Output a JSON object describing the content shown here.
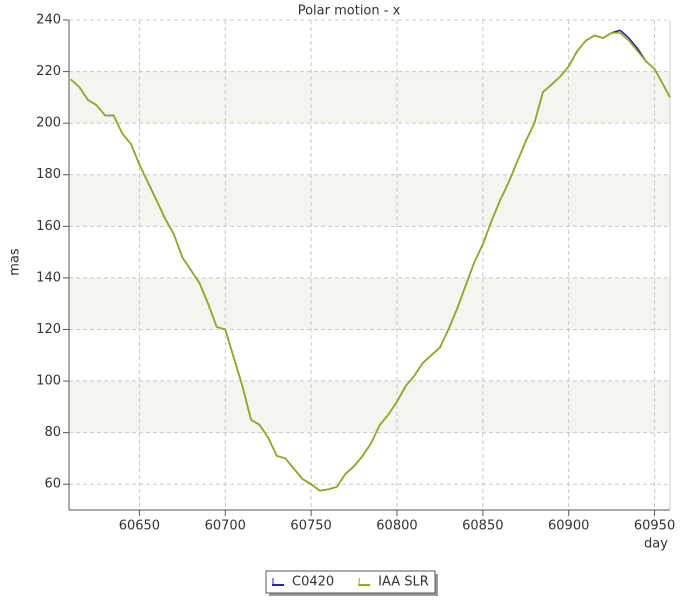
{
  "chart_data": {
    "type": "line",
    "title": "Polar motion - x",
    "x_label": "day",
    "y_label": "mas",
    "x": [
      60610,
      60615,
      60620,
      60625,
      60630,
      60635,
      60640,
      60645,
      60650,
      60655,
      60660,
      60665,
      60670,
      60675,
      60680,
      60685,
      60690,
      60695,
      60700,
      60705,
      60710,
      60715,
      60720,
      60725,
      60730,
      60735,
      60740,
      60745,
      60750,
      60755,
      60760,
      60765,
      60770,
      60775,
      60780,
      60785,
      60790,
      60795,
      60800,
      60805,
      60810,
      60815,
      60820,
      60825,
      60830,
      60835,
      60840,
      60845,
      60850,
      60855,
      60860,
      60865,
      60870,
      60875,
      60880,
      60885,
      60890,
      60895,
      60900,
      60905,
      60910,
      60915,
      60920,
      60925,
      60930,
      60935,
      60940,
      60945,
      60950,
      60955,
      60959
    ],
    "series": [
      {
        "name": "C0420",
        "color": "#2222aa",
        "values": [
          217,
          214,
          209,
          207,
          203,
          203,
          196,
          192,
          184,
          177,
          170,
          163,
          157,
          148,
          143,
          138,
          130,
          121,
          120,
          109,
          98,
          85,
          83,
          78,
          71,
          70,
          66,
          62,
          60,
          57.5,
          58,
          59,
          64,
          67,
          71,
          76,
          83,
          87,
          92,
          98,
          102,
          107,
          110,
          113,
          120,
          128,
          137,
          146,
          153,
          162,
          170,
          177,
          185,
          193,
          200,
          212,
          215,
          218,
          222,
          228,
          232,
          234,
          233,
          235,
          236,
          233,
          229,
          224,
          221,
          215,
          210
        ]
      },
      {
        "name": "IAA SLR",
        "color": "#9aaa1a",
        "values": [
          217,
          214,
          209,
          207,
          203,
          203,
          196,
          192,
          184,
          177,
          170,
          163,
          157,
          148,
          143,
          138,
          130,
          121,
          120,
          109,
          98,
          85,
          83,
          78,
          71,
          70,
          66,
          62,
          60,
          57.5,
          58,
          59,
          64,
          67,
          71,
          76,
          83,
          87,
          92,
          98,
          102,
          107,
          110,
          113,
          120,
          128,
          137,
          146,
          153,
          162,
          170,
          177,
          185,
          193,
          200,
          212,
          215,
          218,
          222,
          228,
          232,
          234,
          233,
          235,
          235,
          232,
          228,
          224,
          221,
          215,
          210
        ]
      }
    ],
    "xlim": [
      60609,
      60959
    ],
    "ylim": [
      50,
      240
    ],
    "xticks": [
      60650,
      60700,
      60750,
      60800,
      60850,
      60900,
      60950
    ],
    "yticks": [
      60,
      80,
      100,
      120,
      140,
      160,
      180,
      200,
      220,
      240
    ],
    "grid": true,
    "legend": "bottom"
  }
}
